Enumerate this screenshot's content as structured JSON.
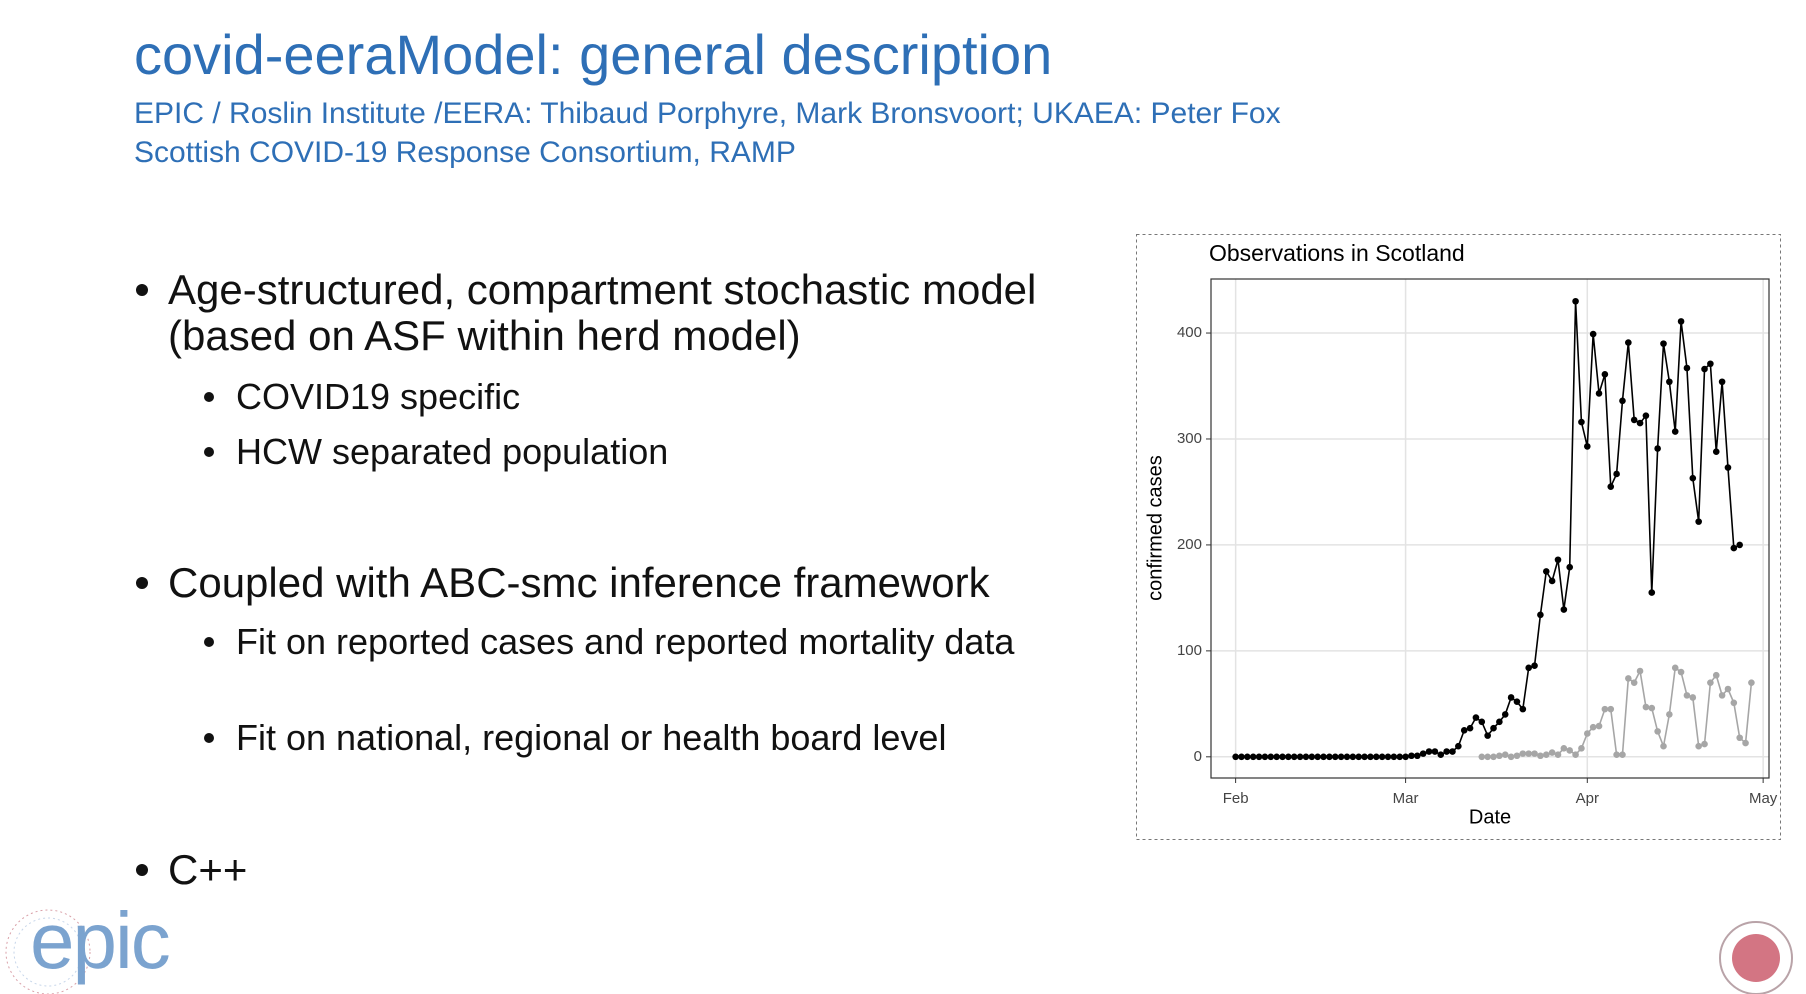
{
  "slide": {
    "title": "covid-eeraModel: general description",
    "subtitle": [
      "EPIC / Roslin Institute /EERA: Thibaud Porphyre, Mark Bronsvoort; UKAEA: Peter Fox",
      "Scottish COVID-19 Response Consortium, RAMP"
    ],
    "bullets": [
      {
        "text": "Age-structured, compartment stochastic model (based on ASF within herd model)",
        "sub": [
          "COVID19 specific",
          "HCW separated population"
        ]
      },
      {
        "text": "Coupled with ABC-smc inference framework",
        "sub": [
          "Fit on reported cases and reported mortality data",
          "Fit on national, regional or health board level"
        ]
      },
      {
        "text": "C++",
        "sub": []
      }
    ],
    "logo": "epic"
  },
  "chart_data": {
    "type": "line",
    "title": "Observations in Scotland",
    "x_label": "Date",
    "y_label": "confirmed cases",
    "xlim": [
      -4.2,
      91
    ],
    "xticks": [
      {
        "value": 0,
        "label": "Feb"
      },
      {
        "value": 29,
        "label": "Mar"
      },
      {
        "value": 60,
        "label": "Apr"
      },
      {
        "value": 90,
        "label": "May"
      }
    ],
    "ylim": [
      -20,
      451
    ],
    "yticks": [
      0,
      100,
      200,
      300,
      400
    ],
    "grid": true,
    "series": [
      {
        "color": "#000000",
        "x": [
          0,
          1,
          2,
          3,
          4,
          5,
          6,
          7,
          8,
          9,
          10,
          11,
          12,
          13,
          14,
          15,
          16,
          17,
          18,
          19,
          20,
          21,
          22,
          23,
          24,
          25,
          26,
          27,
          28,
          29,
          30,
          31,
          32,
          33,
          34,
          35,
          36,
          37,
          38,
          39,
          40,
          41,
          42,
          43,
          44,
          45,
          46,
          47,
          48,
          49,
          50,
          51,
          52,
          53,
          54,
          55,
          56,
          57,
          58,
          59,
          60,
          61,
          62,
          63,
          64,
          65,
          66,
          67,
          68,
          69,
          70,
          71,
          72,
          73,
          74,
          75,
          76,
          77,
          78,
          79,
          80,
          81,
          82,
          83,
          84,
          85,
          86
        ],
        "values": [
          0,
          0,
          0,
          0,
          0,
          0,
          0,
          0,
          0,
          0,
          0,
          0,
          0,
          0,
          0,
          0,
          0,
          0,
          0,
          0,
          0,
          0,
          0,
          0,
          0,
          0,
          0,
          0,
          0,
          0,
          1,
          1,
          3,
          5,
          5,
          2,
          5,
          5,
          10,
          25,
          27,
          37,
          33,
          20,
          27,
          33,
          40,
          56,
          52,
          45,
          84,
          86,
          134,
          175,
          166,
          186,
          139,
          179,
          430,
          316,
          293,
          399,
          343,
          361,
          255,
          267,
          336,
          391,
          318,
          315,
          322,
          155,
          291,
          390,
          354,
          307,
          411,
          367,
          263,
          222,
          366,
          371,
          288,
          354,
          273,
          197,
          200
        ]
      },
      {
        "color": "#a6a6a6",
        "x": [
          42,
          43,
          44,
          45,
          46,
          47,
          48,
          49,
          50,
          51,
          52,
          53,
          54,
          55,
          56,
          57,
          58,
          59,
          60,
          61,
          62,
          63,
          64,
          65,
          66,
          67,
          68,
          69,
          70,
          71,
          72,
          73,
          74,
          75,
          76,
          77,
          78,
          79,
          80,
          81,
          82,
          83,
          84,
          85,
          86,
          87,
          88
        ],
        "values": [
          0,
          0,
          0,
          1,
          2,
          0,
          1,
          3,
          3,
          3,
          1,
          2,
          4,
          2,
          8,
          6,
          2,
          8,
          22,
          28,
          29,
          45,
          45,
          2,
          2,
          74,
          70,
          81,
          47,
          46,
          24,
          10,
          40,
          84,
          80,
          58,
          56,
          10,
          12,
          70,
          77,
          58,
          64,
          51,
          18,
          13,
          70
        ]
      }
    ]
  }
}
